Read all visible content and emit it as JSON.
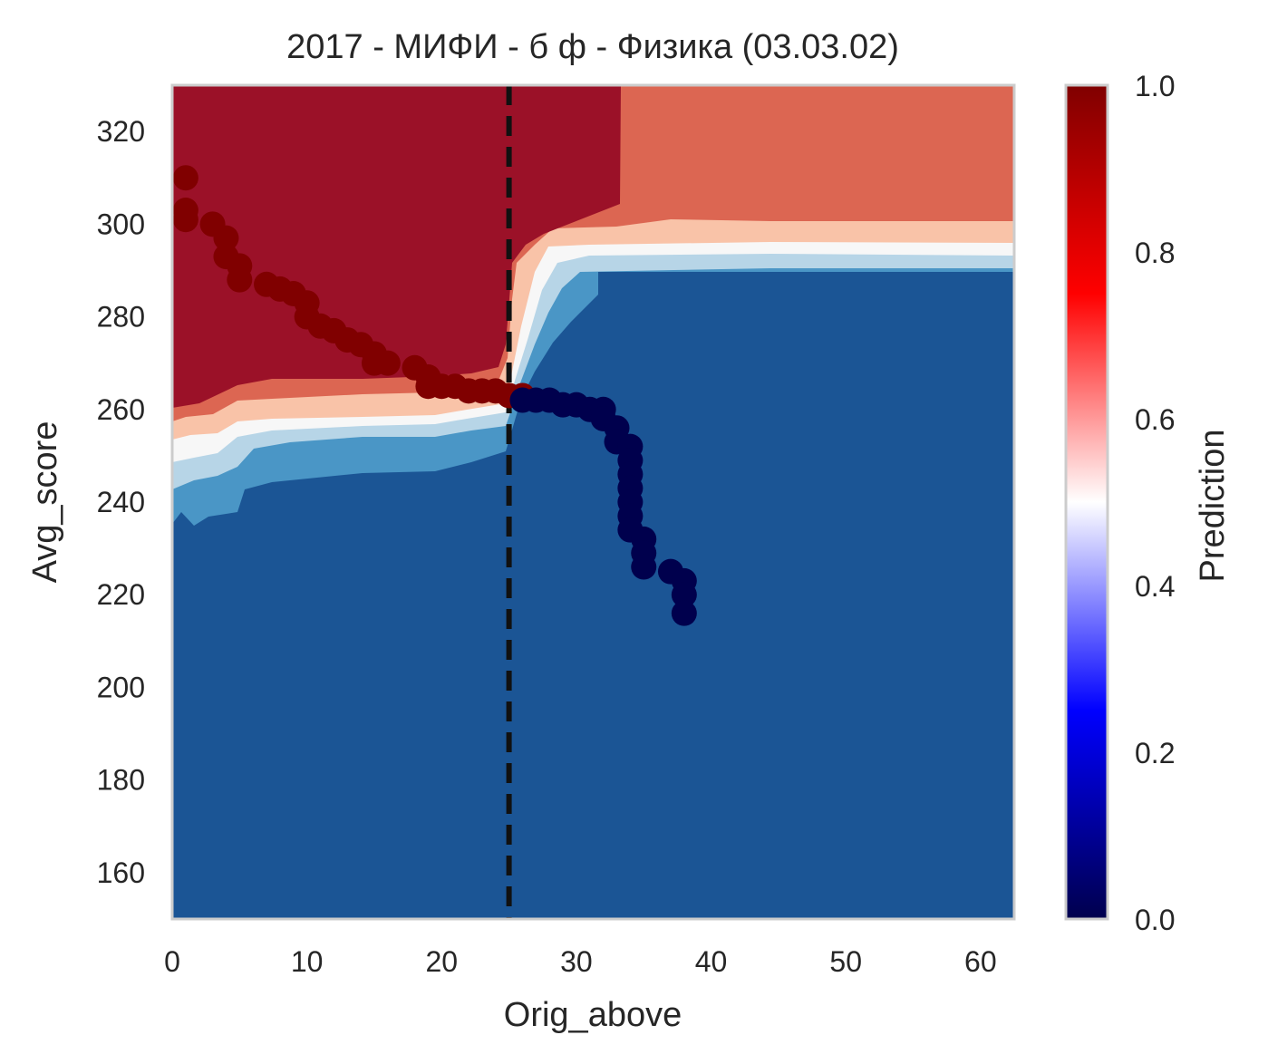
{
  "chart_data": {
    "type": "heatmap",
    "title": "2017 - МИФИ - б ф - Физика (03.03.02)",
    "xlabel": "Orig_above",
    "ylabel": "Avg_score",
    "xlim": [
      0,
      62.5
    ],
    "ylim": [
      150,
      330
    ],
    "x_ticks": [
      0,
      10,
      20,
      30,
      40,
      50,
      60
    ],
    "y_ticks": [
      160,
      180,
      200,
      220,
      240,
      260,
      280,
      300,
      320
    ],
    "grid": false,
    "vline": {
      "x": 25,
      "style": "dashed",
      "color": "#111111"
    },
    "colorbar": {
      "label": "Prediction",
      "min": 0.0,
      "max": 1.0,
      "ticks": [
        0.0,
        0.2,
        0.4,
        0.6,
        0.8,
        1.0
      ],
      "tick_labels": [
        "0.0",
        "0.2",
        "0.4",
        "0.6",
        "0.8",
        "1.0"
      ],
      "colormap": "seismic",
      "stops": [
        "#00004d",
        "#0000ff",
        "#ffffff",
        "#ff0000",
        "#800000"
      ]
    },
    "contour_levels": [
      {
        "level": 0.9,
        "color": "#9b1128"
      },
      {
        "level": 0.7,
        "color": "#dc6652"
      },
      {
        "level": 0.6,
        "color": "#f9c3a8"
      },
      {
        "level": 0.5,
        "color": "#f7f7f7"
      },
      {
        "level": 0.4,
        "color": "#b7d5e7"
      },
      {
        "level": 0.3,
        "color": "#4a96c6"
      },
      {
        "level": 0.1,
        "color": "#1b5595"
      }
    ],
    "trajectory_points": [
      {
        "x": 1,
        "y": 310,
        "p": 1
      },
      {
        "x": 1,
        "y": 303,
        "p": 1
      },
      {
        "x": 1,
        "y": 301,
        "p": 1
      },
      {
        "x": 3,
        "y": 300,
        "p": 1
      },
      {
        "x": 4,
        "y": 297,
        "p": 1
      },
      {
        "x": 4,
        "y": 293,
        "p": 1
      },
      {
        "x": 5,
        "y": 291,
        "p": 1
      },
      {
        "x": 5,
        "y": 288,
        "p": 1
      },
      {
        "x": 7,
        "y": 287,
        "p": 1
      },
      {
        "x": 8,
        "y": 286,
        "p": 1
      },
      {
        "x": 9,
        "y": 285,
        "p": 1
      },
      {
        "x": 10,
        "y": 283,
        "p": 1
      },
      {
        "x": 10,
        "y": 280,
        "p": 1
      },
      {
        "x": 11,
        "y": 278,
        "p": 1
      },
      {
        "x": 12,
        "y": 277,
        "p": 1
      },
      {
        "x": 13,
        "y": 275,
        "p": 1
      },
      {
        "x": 14,
        "y": 274,
        "p": 1
      },
      {
        "x": 15,
        "y": 272,
        "p": 1
      },
      {
        "x": 15,
        "y": 270,
        "p": 1
      },
      {
        "x": 16,
        "y": 270,
        "p": 1
      },
      {
        "x": 18,
        "y": 269,
        "p": 1
      },
      {
        "x": 19,
        "y": 267,
        "p": 1
      },
      {
        "x": 19,
        "y": 265,
        "p": 1
      },
      {
        "x": 20,
        "y": 265,
        "p": 1
      },
      {
        "x": 21,
        "y": 265,
        "p": 1
      },
      {
        "x": 22,
        "y": 264,
        "p": 1
      },
      {
        "x": 23,
        "y": 264,
        "p": 1
      },
      {
        "x": 24,
        "y": 264,
        "p": 1
      },
      {
        "x": 25,
        "y": 263,
        "p": 1
      },
      {
        "x": 26,
        "y": 263,
        "p": 1
      },
      {
        "x": 26,
        "y": 262,
        "p": 0
      },
      {
        "x": 27,
        "y": 262,
        "p": 0
      },
      {
        "x": 28,
        "y": 262,
        "p": 0
      },
      {
        "x": 29,
        "y": 261,
        "p": 0
      },
      {
        "x": 30,
        "y": 261,
        "p": 0
      },
      {
        "x": 31,
        "y": 260,
        "p": 0
      },
      {
        "x": 32,
        "y": 260,
        "p": 0
      },
      {
        "x": 32,
        "y": 258,
        "p": 0
      },
      {
        "x": 33,
        "y": 256,
        "p": 0
      },
      {
        "x": 33,
        "y": 253,
        "p": 0
      },
      {
        "x": 34,
        "y": 252,
        "p": 0
      },
      {
        "x": 34,
        "y": 249,
        "p": 0
      },
      {
        "x": 34,
        "y": 246,
        "p": 0
      },
      {
        "x": 34,
        "y": 243,
        "p": 0
      },
      {
        "x": 34,
        "y": 240,
        "p": 0
      },
      {
        "x": 34,
        "y": 237,
        "p": 0
      },
      {
        "x": 34,
        "y": 234,
        "p": 0
      },
      {
        "x": 35,
        "y": 232,
        "p": 0
      },
      {
        "x": 35,
        "y": 229,
        "p": 0
      },
      {
        "x": 35,
        "y": 226,
        "p": 0
      },
      {
        "x": 37,
        "y": 225,
        "p": 0
      },
      {
        "x": 38,
        "y": 223,
        "p": 0
      },
      {
        "x": 38,
        "y": 220,
        "p": 0
      },
      {
        "x": 38,
        "y": 216,
        "p": 0
      }
    ]
  }
}
